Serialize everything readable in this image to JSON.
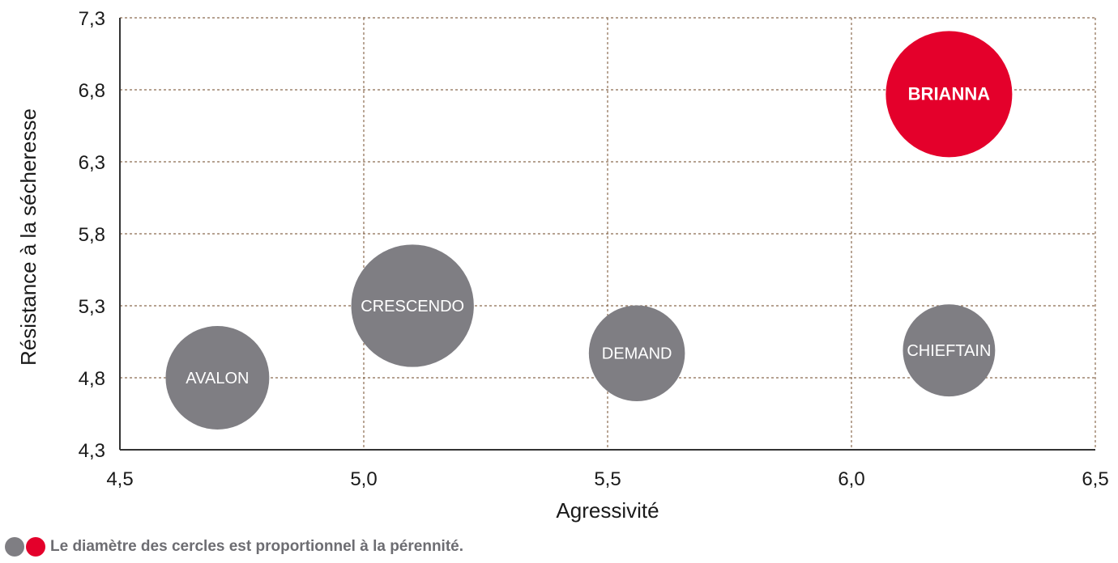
{
  "colors": {
    "grey": "#7f7e83",
    "red": "#e4002b",
    "grid": "#8b6b4f"
  },
  "chart_data": {
    "type": "scatter",
    "subtype": "bubble",
    "xlabel": "Agressivité",
    "ylabel": "Résistance à la sécheresse",
    "xlim": [
      4.5,
      6.5
    ],
    "ylim": [
      4.3,
      7.3
    ],
    "xticks": [
      "4,5",
      "5,0",
      "5,5",
      "6,0",
      "6,5"
    ],
    "xtick_values": [
      4.5,
      5.0,
      5.5,
      6.0,
      6.5
    ],
    "yticks": [
      "7,3",
      "6,8",
      "6,3",
      "5,8",
      "5,3",
      "4,8",
      "4,3"
    ],
    "ytick_values": [
      7.3,
      6.8,
      6.3,
      5.8,
      5.3,
      4.8,
      4.3
    ],
    "grid": true,
    "points": [
      {
        "label": "AVALON",
        "x": 4.7,
        "y": 4.8,
        "size": 0.82,
        "color": "grey",
        "bold": false
      },
      {
        "label": "CRESCENDO",
        "x": 5.1,
        "y": 5.3,
        "size": 0.97,
        "color": "grey",
        "bold": false
      },
      {
        "label": "DEMAND",
        "x": 5.56,
        "y": 4.97,
        "size": 0.76,
        "color": "grey",
        "bold": false
      },
      {
        "label": "CHIEFTAIN",
        "x": 6.2,
        "y": 4.99,
        "size": 0.73,
        "color": "grey",
        "bold": false
      },
      {
        "label": "BRIANNA",
        "x": 6.2,
        "y": 6.77,
        "size": 1.0,
        "color": "red",
        "bold": true
      }
    ]
  },
  "footnote": {
    "text": "Le diamètre des cercles est proportionnel à la pérennité."
  }
}
